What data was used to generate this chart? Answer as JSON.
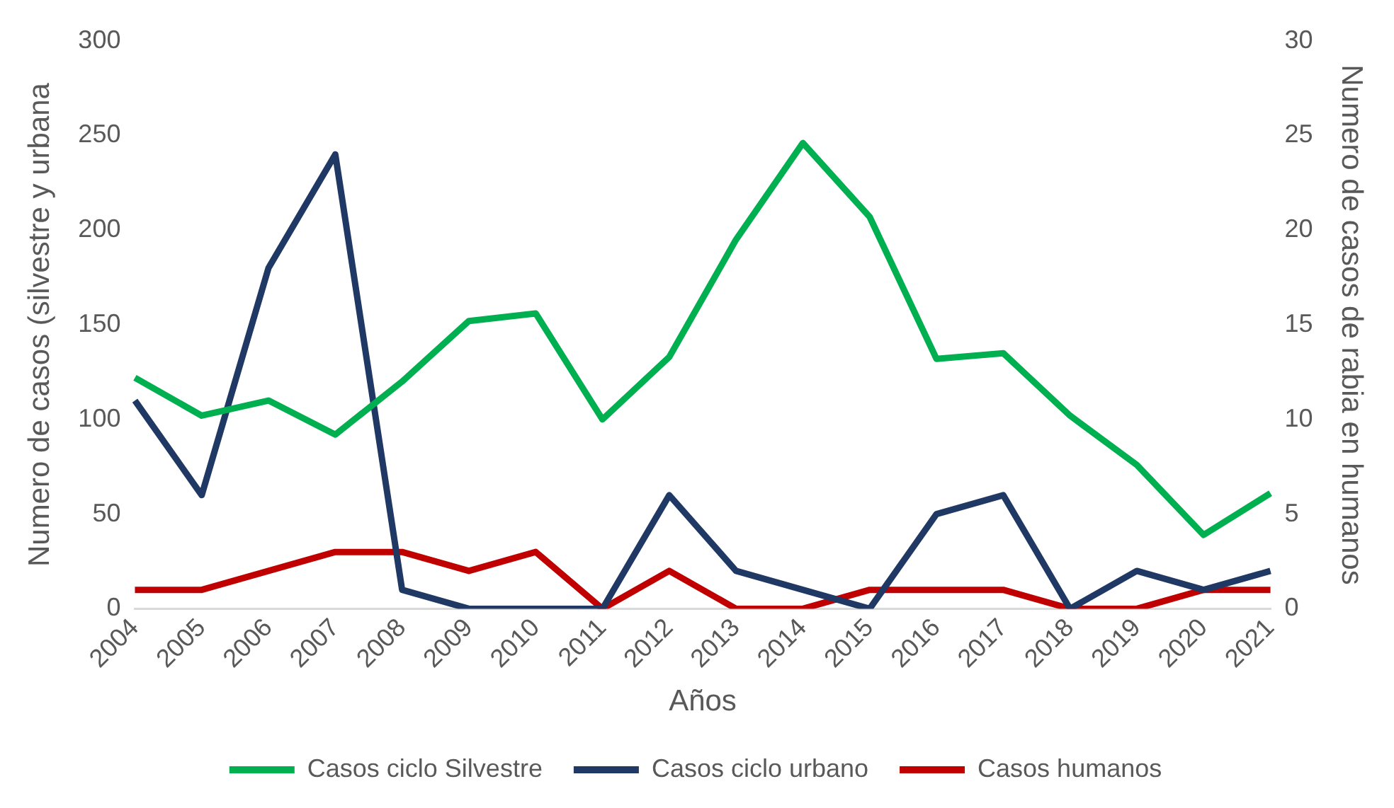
{
  "chart_data": {
    "type": "line",
    "xlabel": "Años",
    "ylabel": "Numero de casos (silvestre y urbana",
    "y2label": "Numero de casos de rabia en humanos",
    "categories": [
      "2004",
      "2005",
      "2006",
      "2007",
      "2008",
      "2009",
      "2010",
      "2011",
      "2012",
      "2013",
      "2014",
      "2015",
      "2016",
      "2017",
      "2018",
      "2019",
      "2020",
      "2021"
    ],
    "series": [
      {
        "name": "Casos ciclo Silvestre",
        "color": "#00b050",
        "values": [
          122,
          102,
          110,
          92,
          120,
          152,
          156,
          100,
          133,
          195,
          246,
          207,
          132,
          135,
          102,
          76,
          39,
          61
        ]
      },
      {
        "name": "Casos ciclo urbano",
        "color": "#1f3864",
        "values": [
          110,
          60,
          180,
          240,
          10,
          0,
          0,
          0,
          60,
          20,
          10,
          0,
          50,
          60,
          0,
          20,
          10,
          20
        ]
      },
      {
        "name": "Casos humanos",
        "color": "#c00000",
        "axis": "y2",
        "values": [
          1,
          1,
          2,
          3,
          3,
          2,
          3,
          0,
          2,
          0,
          0,
          1,
          1,
          1,
          0,
          0,
          1,
          1
        ]
      }
    ],
    "ylim": [
      0,
      300
    ],
    "yticks": [
      0,
      50,
      100,
      150,
      200,
      250,
      300
    ],
    "y2lim": [
      0,
      30
    ],
    "y2ticks": [
      0,
      5,
      10,
      15,
      20,
      25,
      30
    ],
    "grid": false,
    "legend": "bottom",
    "marker": "none",
    "line_style": "solid"
  }
}
